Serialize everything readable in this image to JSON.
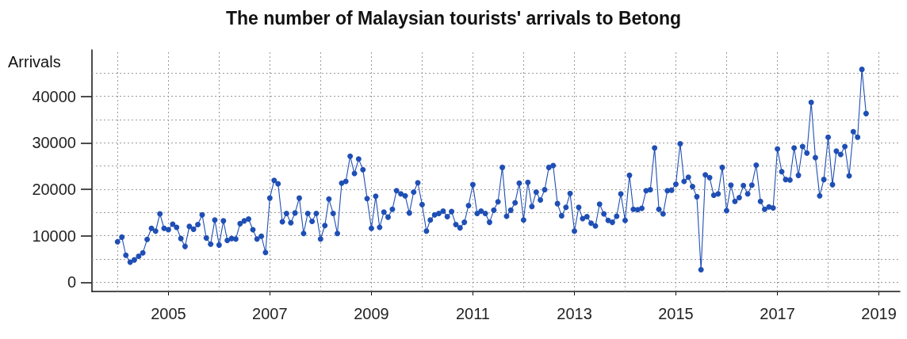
{
  "chart_data": {
    "type": "line",
    "title": "The number of Malaysian tourists' arrivals to Betong",
    "ylabel": "Arrivals",
    "x": [
      "2004-01",
      "2004-02",
      "2004-03",
      "2004-04",
      "2004-05",
      "2004-06",
      "2004-07",
      "2004-08",
      "2004-09",
      "2004-10",
      "2004-11",
      "2004-12",
      "2005-01",
      "2005-02",
      "2005-03",
      "2005-04",
      "2005-05",
      "2005-06",
      "2005-07",
      "2005-08",
      "2005-09",
      "2005-10",
      "2005-11",
      "2005-12",
      "2006-01",
      "2006-02",
      "2006-03",
      "2006-04",
      "2006-05",
      "2006-06",
      "2006-07",
      "2006-08",
      "2006-09",
      "2006-10",
      "2006-11",
      "2006-12",
      "2007-01",
      "2007-02",
      "2007-03",
      "2007-04",
      "2007-05",
      "2007-06",
      "2007-07",
      "2007-08",
      "2007-09",
      "2007-10",
      "2007-11",
      "2007-12",
      "2008-01",
      "2008-02",
      "2008-03",
      "2008-04",
      "2008-05",
      "2008-06",
      "2008-07",
      "2008-08",
      "2008-09",
      "2008-10",
      "2008-11",
      "2008-12",
      "2009-01",
      "2009-02",
      "2009-03",
      "2009-04",
      "2009-05",
      "2009-06",
      "2009-07",
      "2009-08",
      "2009-09",
      "2009-10",
      "2009-11",
      "2009-12",
      "2010-01",
      "2010-02",
      "2010-03",
      "2010-04",
      "2010-05",
      "2010-06",
      "2010-07",
      "2010-08",
      "2010-09",
      "2010-10",
      "2010-11",
      "2010-12",
      "2011-01",
      "2011-02",
      "2011-03",
      "2011-04",
      "2011-05",
      "2011-06",
      "2011-07",
      "2011-08",
      "2011-09",
      "2011-10",
      "2011-11",
      "2011-12",
      "2012-01",
      "2012-02",
      "2012-03",
      "2012-04",
      "2012-05",
      "2012-06",
      "2012-07",
      "2012-08",
      "2012-09",
      "2012-10",
      "2012-11",
      "2012-12",
      "2013-01",
      "2013-02",
      "2013-03",
      "2013-04",
      "2013-05",
      "2013-06",
      "2013-07",
      "2013-08",
      "2013-09",
      "2013-10",
      "2013-11",
      "2013-12",
      "2014-01",
      "2014-02",
      "2014-03",
      "2014-04",
      "2014-05",
      "2014-06",
      "2014-07",
      "2014-08",
      "2014-09",
      "2014-10",
      "2014-11",
      "2014-12",
      "2015-01",
      "2015-02",
      "2015-03",
      "2015-04",
      "2015-05",
      "2015-06",
      "2015-07",
      "2015-08",
      "2015-09",
      "2015-10",
      "2015-11",
      "2015-12",
      "2016-01",
      "2016-02",
      "2016-03",
      "2016-04",
      "2016-05",
      "2016-06",
      "2016-07",
      "2016-08",
      "2016-09",
      "2016-10",
      "2016-11",
      "2016-12",
      "2017-01",
      "2017-02",
      "2017-03",
      "2017-04",
      "2017-05",
      "2017-06",
      "2017-07",
      "2017-08",
      "2017-09",
      "2017-10",
      "2017-11",
      "2017-12",
      "2018-01",
      "2018-02",
      "2018-03",
      "2018-04",
      "2018-05",
      "2018-06",
      "2018-07",
      "2018-08",
      "2018-09",
      "2018-10"
    ],
    "series": [
      {
        "color": "#1f4fb5",
        "values": [
          8700,
          9700,
          5800,
          4300,
          4800,
          5600,
          6300,
          9200,
          11600,
          11000,
          14700,
          11600,
          11300,
          12500,
          11800,
          9400,
          7700,
          12000,
          11400,
          12400,
          14500,
          9500,
          8200,
          13400,
          8000,
          13200,
          9000,
          9400,
          9300,
          12600,
          13200,
          13600,
          11300,
          9300,
          9900,
          6400,
          18100,
          21900,
          21200,
          13000,
          14800,
          12800,
          14900,
          18100,
          10500,
          14800,
          13100,
          14800,
          9300,
          12200,
          17900,
          14800,
          10500,
          21300,
          21700,
          27100,
          23400,
          26500,
          24200,
          18000,
          11600,
          18500,
          11800,
          15100,
          14000,
          15700,
          19700,
          19000,
          18600,
          14900,
          19400,
          21400,
          16700,
          11000,
          13400,
          14500,
          14800,
          15300,
          14100,
          15200,
          12400,
          11700,
          12900,
          16500,
          21000,
          14800,
          15300,
          14800,
          12900,
          15500,
          17300,
          24700,
          14200,
          15500,
          17100,
          21300,
          13400,
          21500,
          16300,
          19400,
          17700,
          19900,
          24700,
          25100,
          16900,
          14300,
          16100,
          19100,
          11000,
          16100,
          13700,
          14100,
          12700,
          12100,
          16800,
          14700,
          13300,
          12900,
          14200,
          19000,
          13300,
          23000,
          15700,
          15600,
          15900,
          19700,
          19900,
          28900,
          15700,
          14700,
          19700,
          19800,
          21100,
          29800,
          21700,
          22600,
          20600,
          18400,
          2700,
          23100,
          22500,
          18700,
          19000,
          24700,
          15400,
          20900,
          17400,
          18200,
          20800,
          19000,
          20900,
          25200,
          17400,
          15700,
          16200,
          16000,
          28700,
          23800,
          22100,
          22000,
          28900,
          23000,
          29200,
          27800,
          38700,
          26800,
          18600,
          22100,
          31200,
          21000,
          28200,
          27500,
          29200,
          22900,
          32400,
          31200,
          45800,
          36300
        ]
      }
    ],
    "marker": "circle",
    "grid": true,
    "xlim": [
      "2003-07",
      "2019-06"
    ],
    "xticks": [
      {
        "value": "2004",
        "label": null
      },
      "2005",
      {
        "value": "2006",
        "label": null
      },
      "2007",
      {
        "value": "2008",
        "label": null
      },
      "2009",
      {
        "value": "2010",
        "label": null
      },
      "2011",
      {
        "value": "2012",
        "label": null
      },
      "2013",
      {
        "value": "2014",
        "label": null
      },
      "2015",
      {
        "value": "2016",
        "label": null
      },
      "2017",
      {
        "value": "2018",
        "label": null
      },
      "2019"
    ],
    "ylim": [
      -2000,
      50000
    ],
    "yticks": [
      0,
      {
        "value": 5000,
        "label": null
      },
      10000,
      {
        "value": 15000,
        "label": null
      },
      20000,
      {
        "value": 25000,
        "label": null
      },
      30000,
      {
        "value": 35000,
        "label": null
      },
      40000,
      {
        "value": 45000,
        "label": null
      }
    ]
  }
}
